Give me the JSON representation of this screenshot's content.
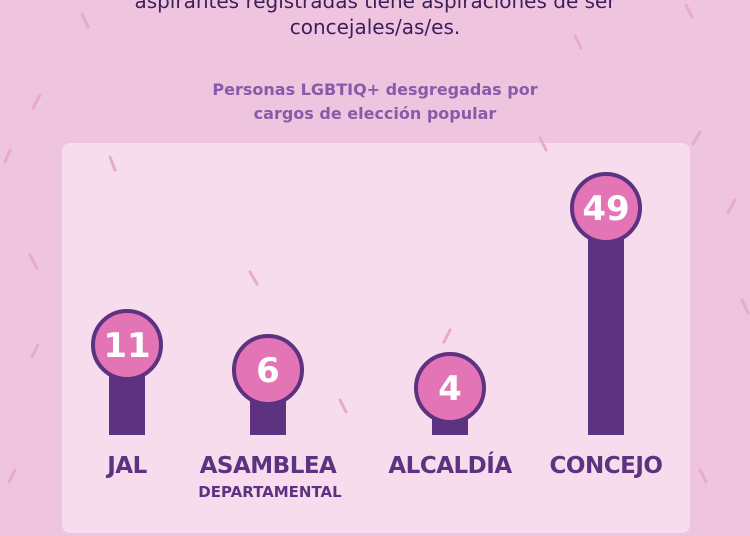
{
  "intro": {
    "line1": "aspirantes registradas tiene aspiraciones de ser",
    "line2": "concejales/as/es."
  },
  "colors": {
    "background": "#eec4df",
    "panel": "#f7dcee",
    "bar": "#5d3280",
    "bubble": "#e374b5",
    "subtitle": "#8a5aa8"
  },
  "chart_data": {
    "type": "bar",
    "title": "Personas LGBTIQ+ desgregadas por cargos de elección popular",
    "title_lines": [
      "Personas LGBTIQ+ desgregadas por",
      "cargos de elección popular"
    ],
    "categories": [
      "JAL",
      "ASAMBLEA DEPARTAMENTAL",
      "ALCALDÍA",
      "CONCEJO"
    ],
    "category_lines": [
      [
        "JAL"
      ],
      [
        "ASAMBLEA",
        "DEPARTAMENTAL"
      ],
      [
        "ALCALDÍA"
      ],
      [
        "CONCEJO"
      ]
    ],
    "values": [
      11,
      6,
      4,
      49
    ],
    "xlabel": "",
    "ylabel": "",
    "ylim": [
      0,
      49
    ],
    "grid": false,
    "legend": "none"
  }
}
